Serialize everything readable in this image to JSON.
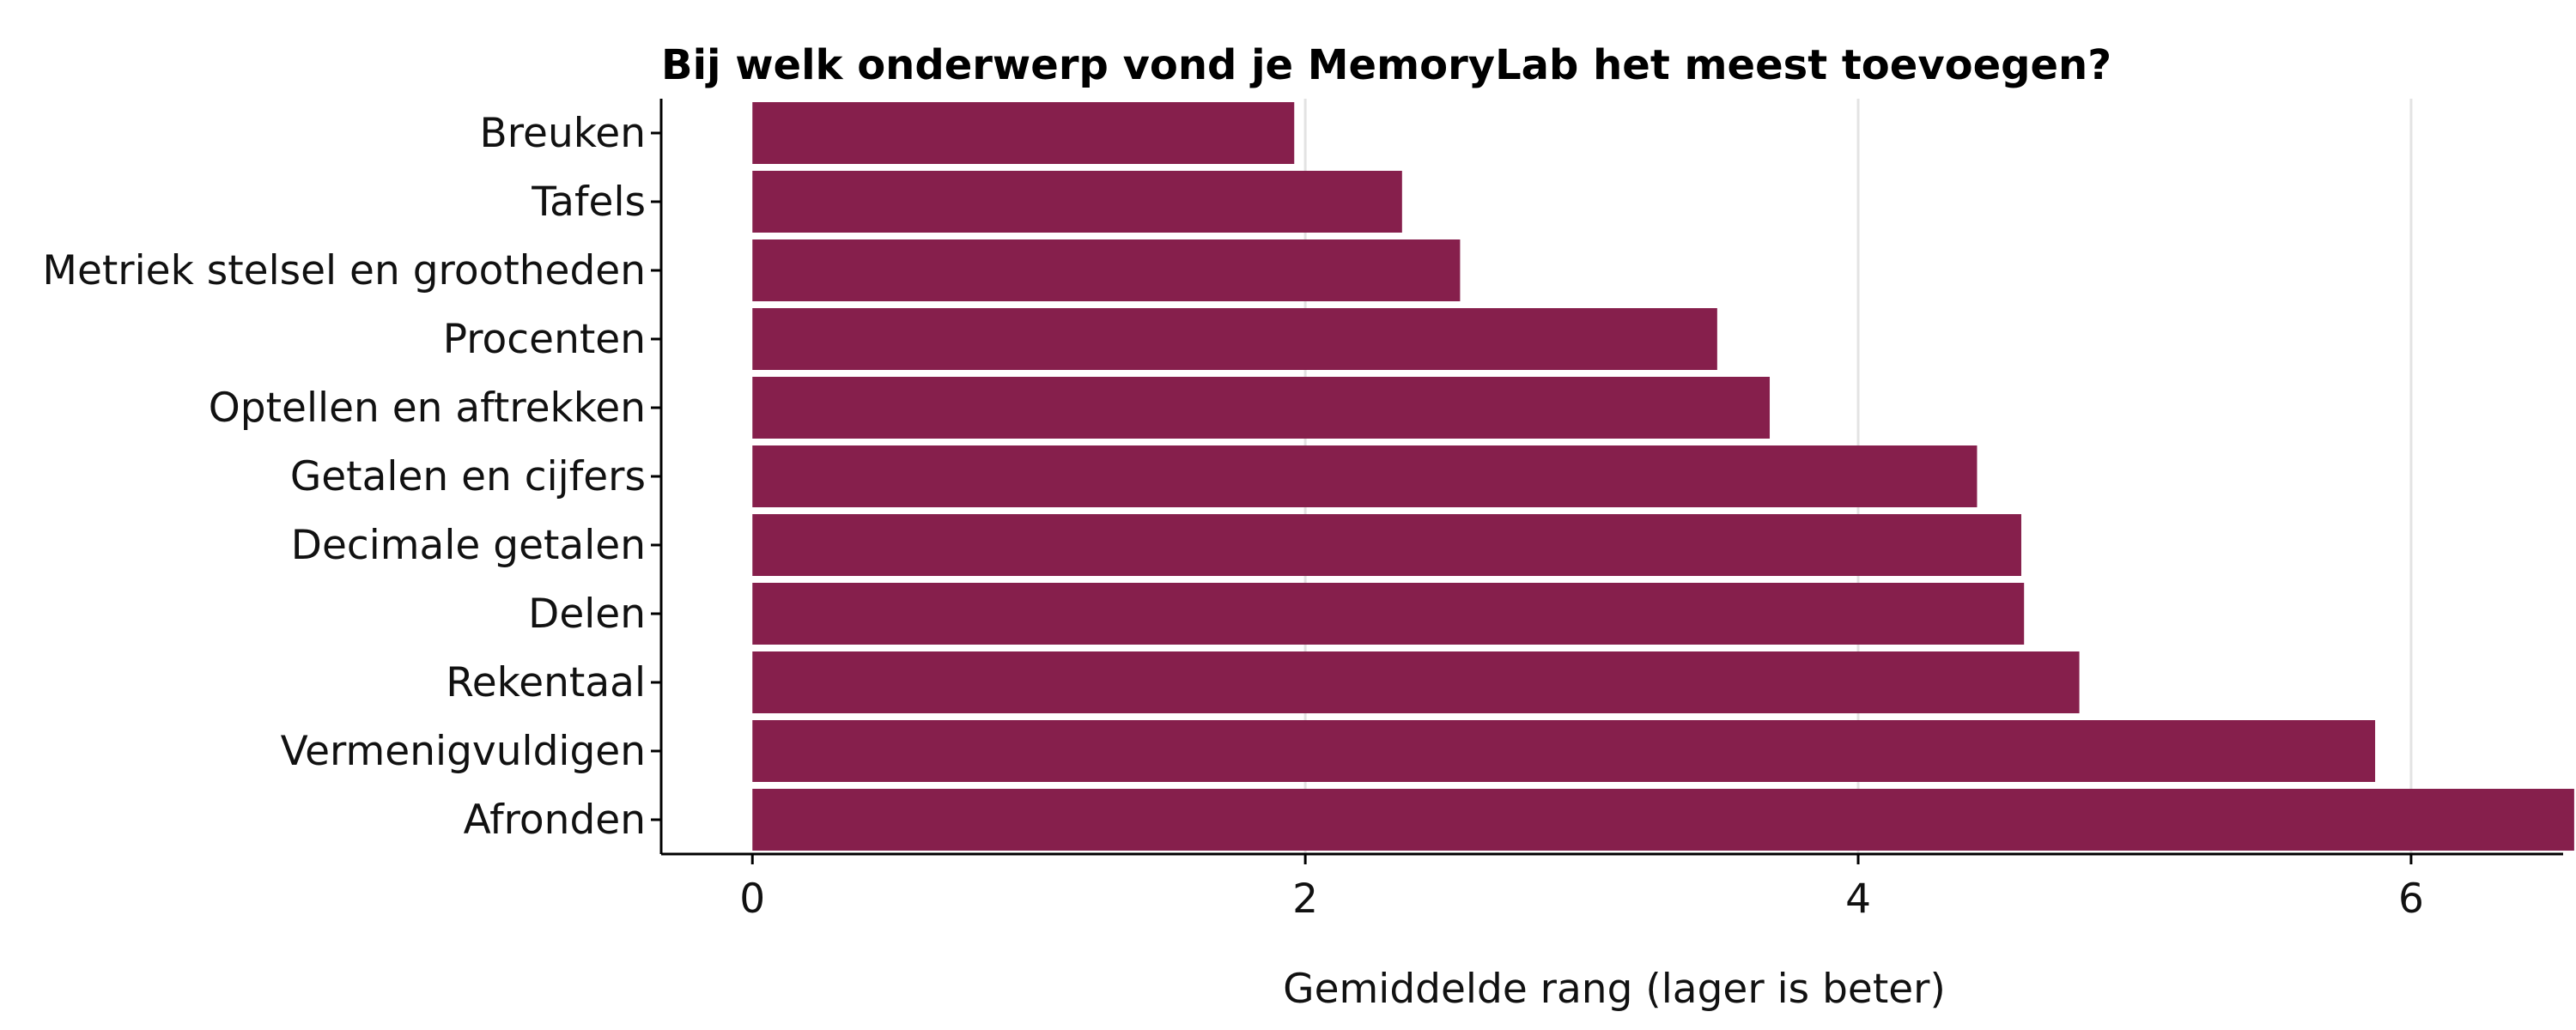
{
  "chart_data": {
    "type": "bar",
    "orientation": "horizontal",
    "title": "Bij welk onderwerp vond je MemoryLab het meest toevoegen?",
    "xlabel": "Gemiddelde rang (lager is beter)",
    "ylabel": "",
    "xlim": [
      -0.33,
      6.55
    ],
    "xticks": [
      0,
      2,
      4,
      6
    ],
    "grid": "vertical major lines",
    "legend": "none",
    "bar_color": "#861f4c",
    "categories": [
      "Breuken",
      "Tafels",
      "Metriek stelsel en grootheden",
      "Procenten",
      "Optellen en aftrekken",
      "Getalen en cijfers",
      "Decimale getalen",
      "Delen",
      "Rekentaal",
      "Vermenigvuldigen",
      "Afronden"
    ],
    "values": [
      1.96,
      2.35,
      2.56,
      3.49,
      3.68,
      4.43,
      4.59,
      4.6,
      4.8,
      5.87,
      6.59
    ]
  }
}
